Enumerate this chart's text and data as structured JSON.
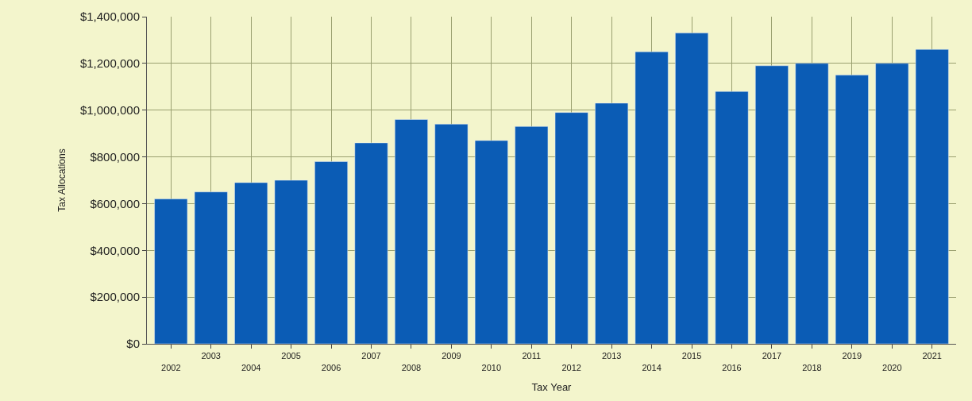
{
  "chart_data": {
    "type": "bar",
    "xlabel": "Tax Year",
    "ylabel": "Tax Allocations",
    "categories": [
      "2002",
      "2003",
      "2004",
      "2005",
      "2006",
      "2007",
      "2008",
      "2009",
      "2010",
      "2011",
      "2012",
      "2013",
      "2014",
      "2015",
      "2016",
      "2017",
      "2018",
      "2019",
      "2020",
      "2021"
    ],
    "values": [
      620000,
      650000,
      690000,
      700000,
      780000,
      860000,
      960000,
      940000,
      870000,
      930000,
      990000,
      1030000,
      1250000,
      1330000,
      1080000,
      1190000,
      1200000,
      1150000,
      1200000,
      1260000
    ],
    "color": "#0b5cb5",
    "ylim": [
      0,
      1400000
    ],
    "yticks": [
      {
        "value": 0,
        "label": "$0"
      },
      {
        "value": 200000,
        "label": "$200,000"
      },
      {
        "value": 400000,
        "label": "$400,000"
      },
      {
        "value": 600000,
        "label": "$600,000"
      },
      {
        "value": 800000,
        "label": "$800,000"
      },
      {
        "value": 1000000,
        "label": "$1,000,000"
      },
      {
        "value": 1200000,
        "label": "$1,200,000"
      },
      {
        "value": 1400000,
        "label": "$1,400,000"
      }
    ],
    "grid": true
  }
}
